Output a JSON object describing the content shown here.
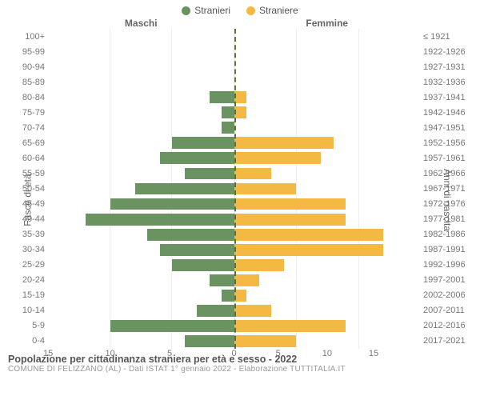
{
  "legend": {
    "m": "Stranieri",
    "f": "Straniere"
  },
  "colors": {
    "m": "#6b9362",
    "f": "#f4b942",
    "grid": "#eeeeee",
    "centerline": "#6b6b2f",
    "bg": "#ffffff"
  },
  "col_titles": {
    "left": "Maschi",
    "right": "Femmine"
  },
  "y_axis_left_label": "Fasce di età",
  "y_axis_right_label": "Anni di nascita",
  "age_bands": [
    "100+",
    "95-99",
    "90-94",
    "85-89",
    "80-84",
    "75-79",
    "70-74",
    "65-69",
    "60-64",
    "55-59",
    "50-54",
    "45-49",
    "40-44",
    "35-39",
    "30-34",
    "25-29",
    "20-24",
    "15-19",
    "10-14",
    "5-9",
    "0-4"
  ],
  "birth_years": [
    "≤ 1921",
    "1922-1926",
    "1927-1931",
    "1932-1936",
    "1937-1941",
    "1942-1946",
    "1947-1951",
    "1952-1956",
    "1957-1961",
    "1962-1966",
    "1967-1971",
    "1972-1976",
    "1977-1981",
    "1982-1986",
    "1987-1991",
    "1992-1996",
    "1997-2001",
    "2002-2006",
    "2007-2011",
    "2012-2016",
    "2017-2021"
  ],
  "xmax": 15,
  "xticks": [
    0,
    5,
    10,
    15
  ],
  "males": [
    0,
    0,
    0,
    0,
    2,
    1,
    1,
    5,
    6,
    4,
    8,
    10,
    12,
    7,
    6,
    5,
    2,
    1,
    3,
    10,
    4
  ],
  "females": [
    0,
    0,
    0,
    0,
    1,
    1,
    0,
    8,
    7,
    3,
    5,
    9,
    9,
    12,
    12,
    4,
    2,
    1,
    3,
    9,
    5
  ],
  "footer": {
    "title": "Popolazione per cittadinanza straniera per età e sesso - 2022",
    "sub": "COMUNE DI FELIZZANO (AL) - Dati ISTAT 1° gennaio 2022 - Elaborazione TUTTITALIA.IT"
  },
  "chart_type": "population-pyramid",
  "fontsize": {
    "legend": 12,
    "axis": 11,
    "title": 12.5,
    "sub": 10
  }
}
